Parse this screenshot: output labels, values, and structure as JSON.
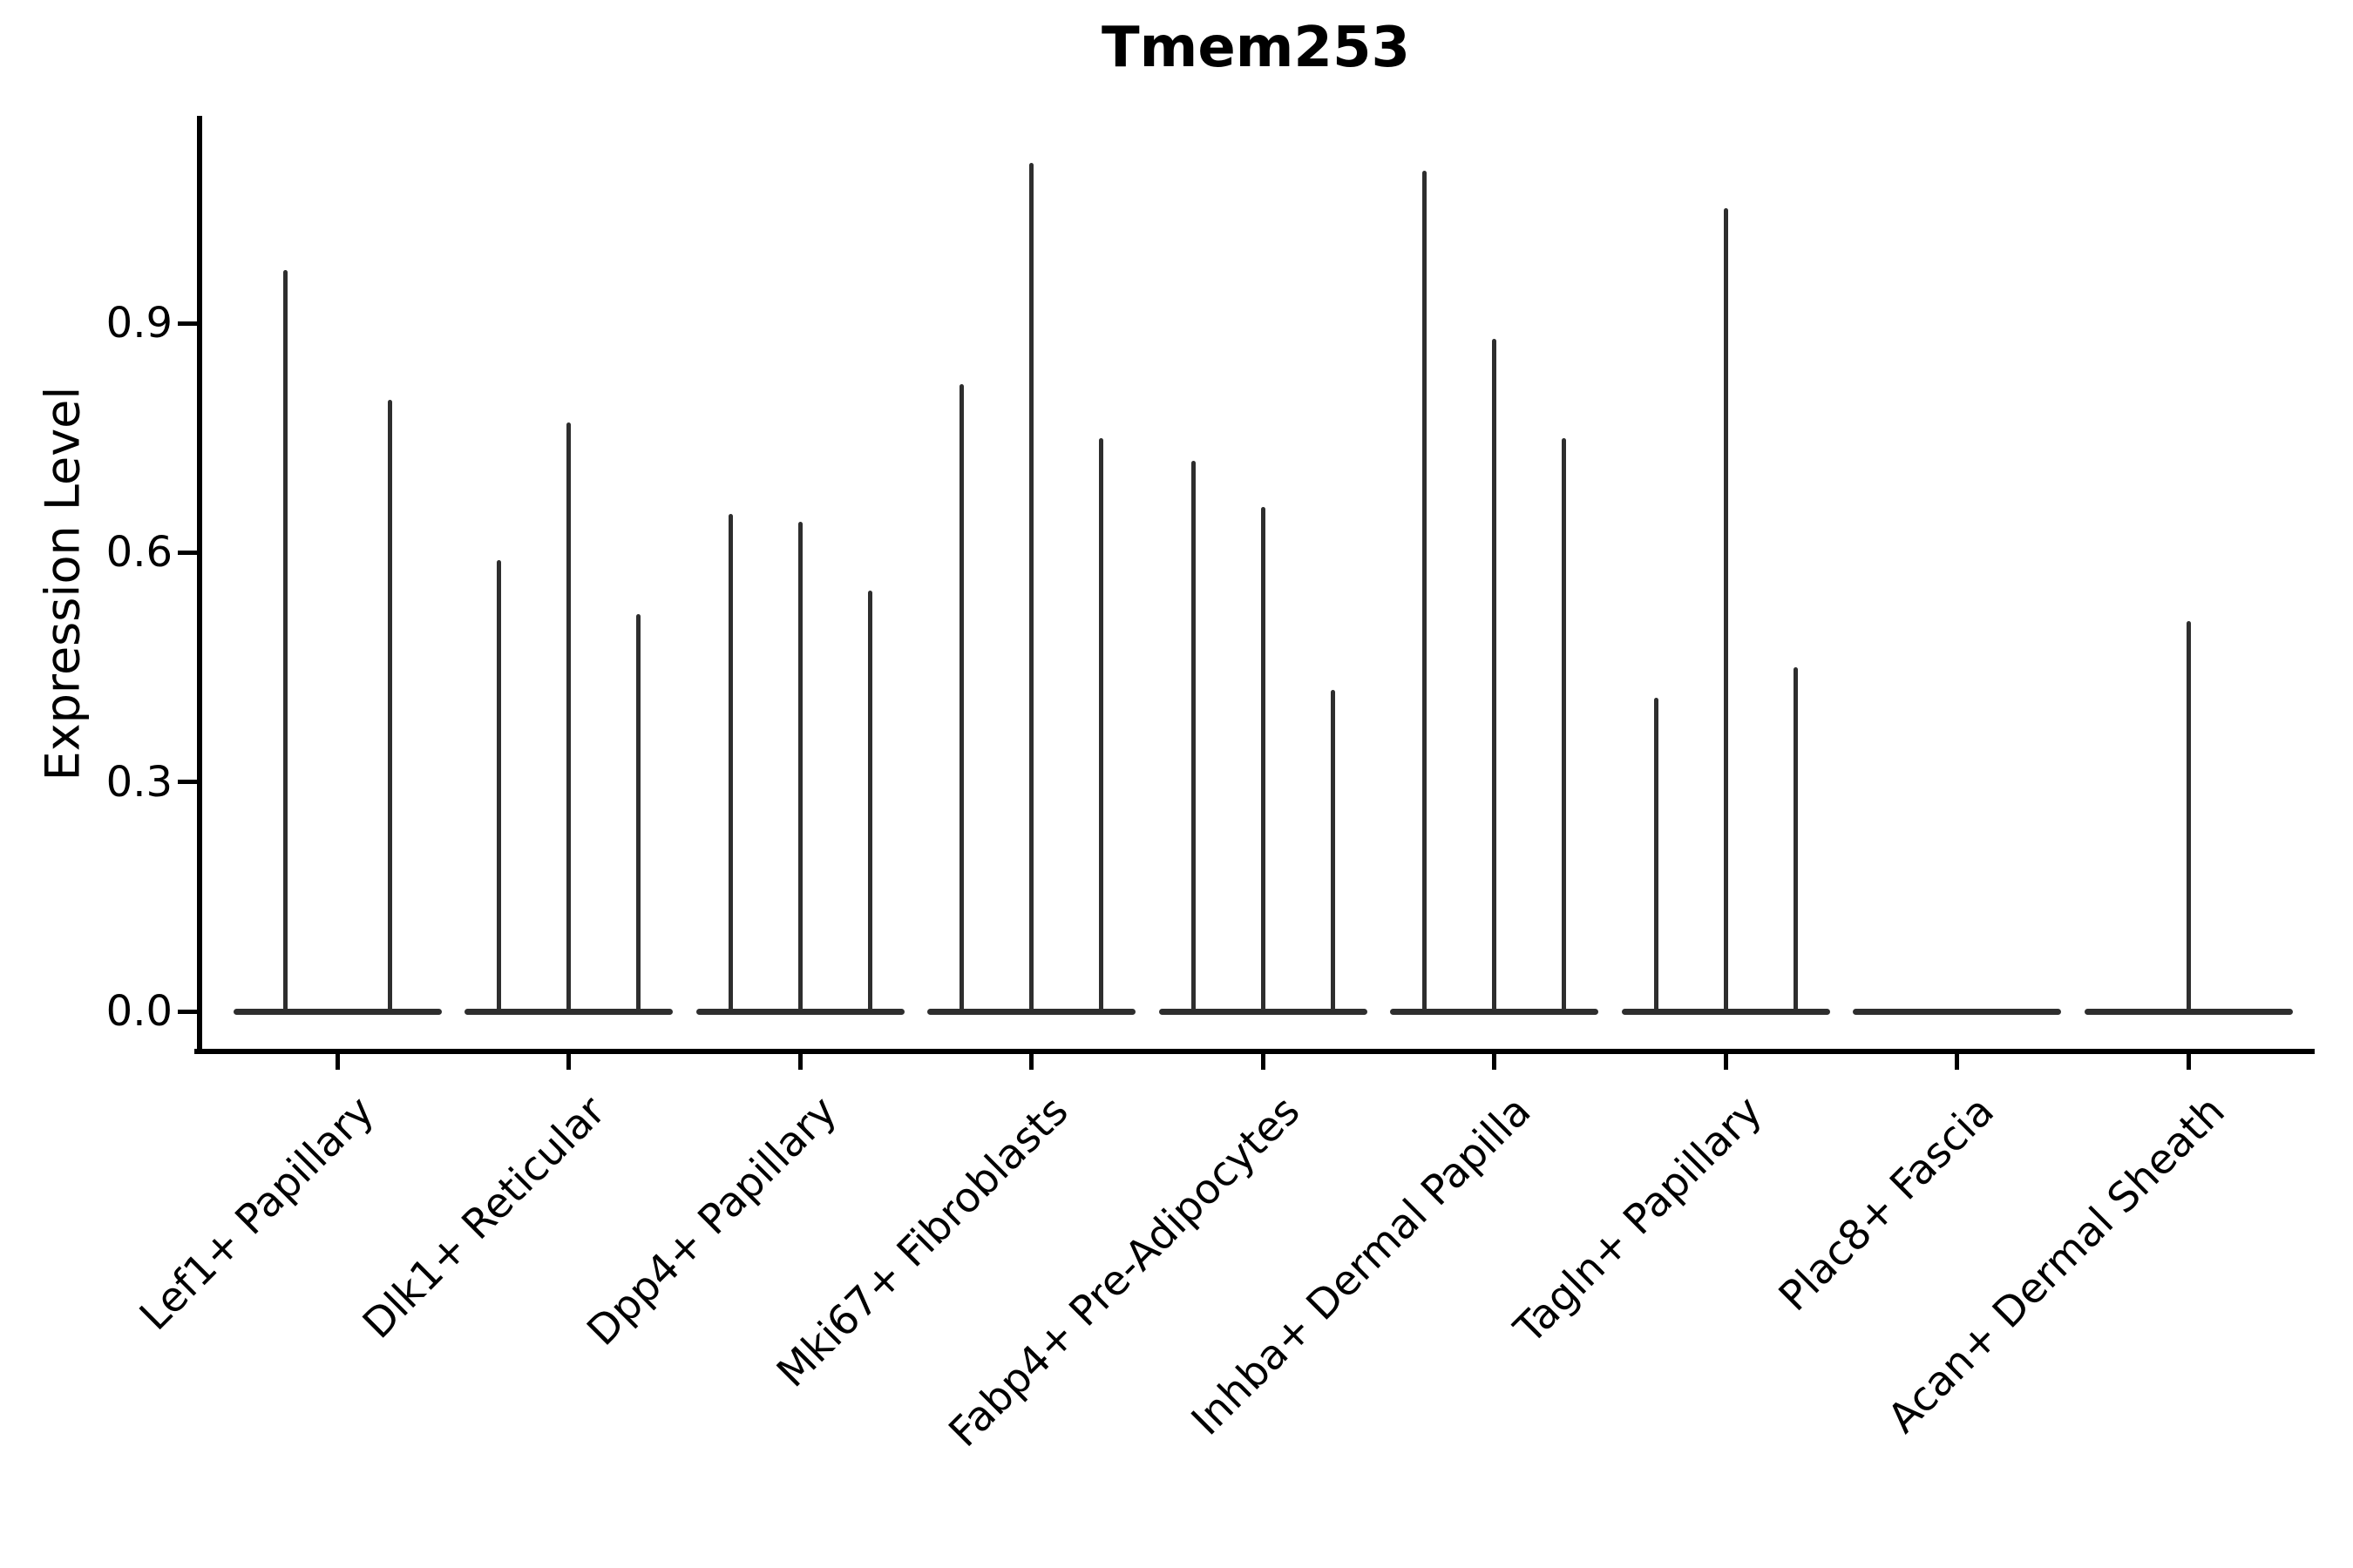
{
  "figure": {
    "title": "Tmem253",
    "y_axis_label": "Expression Level",
    "background_color": "#ffffff"
  },
  "colors": {
    "violin": "#2e2e2e",
    "axis": "#000000",
    "text": "#000000"
  },
  "chart_data": {
    "type": "violin",
    "title": "Tmem253",
    "xlabel": "",
    "ylabel": "Expression Level",
    "ytick_labels": [
      "0.0",
      "0.3",
      "0.6",
      "0.9"
    ],
    "ytick_values": [
      0.0,
      0.3,
      0.6,
      0.9
    ],
    "ylim": [
      -0.055,
      1.17
    ],
    "grid": false,
    "legend": "none",
    "x_tick_rotation_deg": 45,
    "categories": [
      "Lef1+ Papillary",
      "Dlk1+ Reticular",
      "Dpp4+ Papillary",
      "Mki67+ Fibroblasts",
      "Fabp4+ Pre-Adipocytes",
      "Inhba+ Dermal Papilla",
      "Tagln+ Papillary",
      "Plac8+ Fascia",
      "Acan+ Dermal Sheath"
    ],
    "description": "Each category shows 2-3 extremely narrow violins: density is concentrated at expression 0 (flat lens on the baseline) with a thin vertical spike reaching each violin's maximum expression value; zero max means flat violin with no spike.",
    "groups": [
      {
        "label": "Lef1+ Papillary",
        "violin_max": [
          0.97,
          0.8
        ]
      },
      {
        "label": "Dlk1+ Reticular",
        "violin_max": [
          0.59,
          0.77,
          0.52
        ]
      },
      {
        "label": "Dpp4+ Papillary",
        "violin_max": [
          0.65,
          0.64,
          0.55
        ]
      },
      {
        "label": "Mki67+ Fibroblasts",
        "violin_max": [
          0.82,
          1.11,
          0.75
        ]
      },
      {
        "label": "Fabp4+ Pre-Adipocytes",
        "violin_max": [
          0.72,
          0.66,
          0.42
        ]
      },
      {
        "label": "Inhba+ Dermal Papilla",
        "violin_max": [
          1.1,
          0.88,
          0.75
        ]
      },
      {
        "label": "Tagln+ Papillary",
        "violin_max": [
          0.41,
          1.05,
          0.45
        ]
      },
      {
        "label": "Plac8+ Fascia",
        "violin_max": [
          0,
          0,
          0
        ]
      },
      {
        "label": "Acan+ Dermal Sheath",
        "violin_max": [
          0,
          0.51,
          0
        ]
      }
    ]
  }
}
